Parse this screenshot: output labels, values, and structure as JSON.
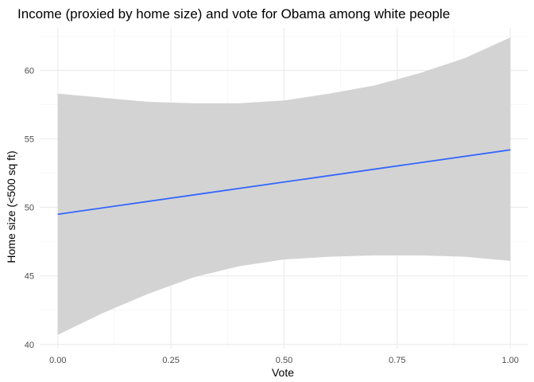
{
  "chart_data": {
    "type": "line",
    "title": "Income (proxied by home size) and vote for Obama among white people",
    "xlabel": "Vote",
    "ylabel": "Home size (<500 sq ft)",
    "xlim": [
      -0.04,
      1.04
    ],
    "ylim": [
      39.7,
      63.1
    ],
    "x_ticks": [
      0.0,
      0.25,
      0.5,
      0.75,
      1.0
    ],
    "x_tick_labels": [
      "0.00",
      "0.25",
      "0.50",
      "0.75",
      "1.00"
    ],
    "y_ticks": [
      40,
      45,
      50,
      55,
      60
    ],
    "y_tick_labels": [
      "40",
      "45",
      "50",
      "55",
      "60"
    ],
    "grid": true,
    "legend": "none",
    "series": [
      {
        "x": [
          0.0,
          1.0
        ],
        "y": [
          49.5,
          54.2
        ],
        "color": "#3366ff"
      }
    ],
    "ribbon": {
      "color": "#d3d3d3",
      "x": [
        0.0,
        0.1,
        0.2,
        0.3,
        0.4,
        0.5,
        0.6,
        0.7,
        0.8,
        0.9,
        1.0
      ],
      "upper": [
        58.3,
        58.0,
        57.7,
        57.6,
        57.6,
        57.8,
        58.3,
        58.9,
        59.8,
        60.9,
        62.4
      ],
      "lower": [
        40.7,
        42.3,
        43.7,
        44.9,
        45.7,
        46.2,
        46.4,
        46.5,
        46.5,
        46.4,
        46.1
      ]
    }
  }
}
